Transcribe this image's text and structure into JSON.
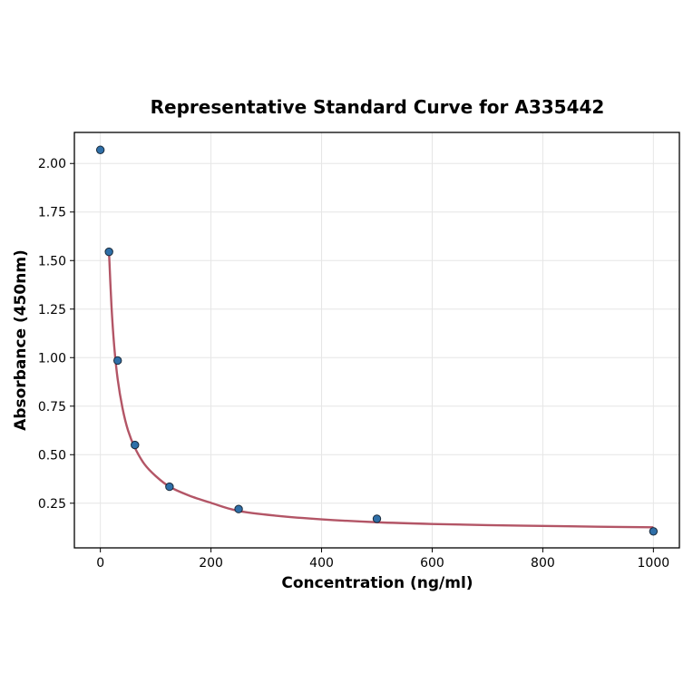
{
  "chart_data": {
    "type": "scatter",
    "title": "Representative Standard Curve for A335442",
    "xlabel": "Concentration (ng/ml)",
    "ylabel": "Absorbance (450nm)",
    "xlim": [
      -47,
      1047
    ],
    "ylim": [
      0.02,
      2.16
    ],
    "xticks": [
      0,
      200,
      400,
      600,
      800,
      1000
    ],
    "xtick_labels": [
      "0",
      "200",
      "400",
      "600",
      "800",
      "1000"
    ],
    "yticks": [
      0.25,
      0.5,
      0.75,
      1.0,
      1.25,
      1.5,
      1.75,
      2.0
    ],
    "ytick_labels": [
      "0.25",
      "0.50",
      "0.75",
      "1.00",
      "1.25",
      "1.50",
      "1.75",
      "2.00"
    ],
    "grid": true,
    "series": [
      {
        "kind": "points",
        "x": [
          0,
          15.6,
          31.25,
          62.5,
          125,
          250,
          500,
          1000
        ],
        "y": [
          2.07,
          1.545,
          0.985,
          0.55,
          0.335,
          0.22,
          0.17,
          0.105
        ],
        "color": "#2f6fa8"
      },
      {
        "kind": "fit-curve",
        "x": [
          15.6,
          20,
          25,
          31.25,
          40,
          50,
          62.5,
          80,
          100,
          125,
          160,
          200,
          250,
          320,
          400,
          500,
          600,
          700,
          800,
          900,
          1000
        ],
        "y": [
          1.545,
          1.27,
          1.06,
          0.89,
          0.74,
          0.625,
          0.535,
          0.45,
          0.39,
          0.335,
          0.29,
          0.252,
          0.21,
          0.185,
          0.167,
          0.152,
          0.143,
          0.137,
          0.133,
          0.129,
          0.126
        ],
        "color": "#b35566"
      }
    ]
  }
}
